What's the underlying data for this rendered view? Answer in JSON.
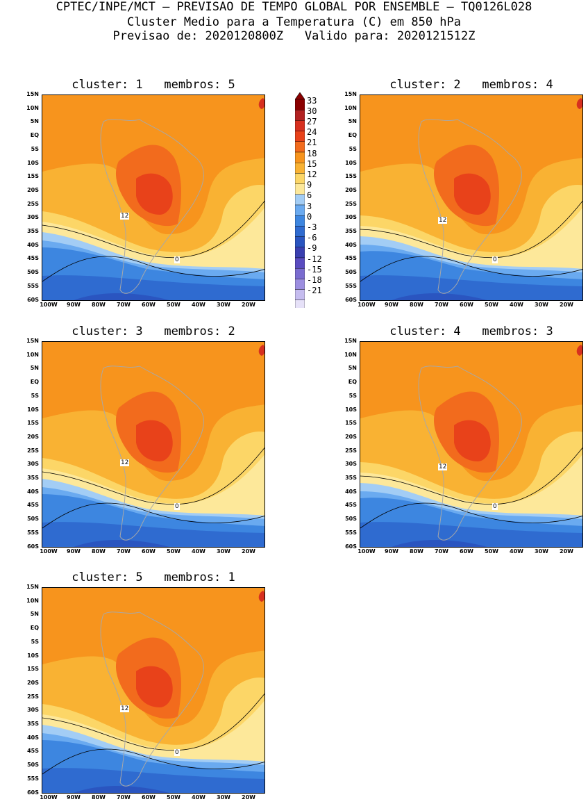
{
  "header": {
    "line1": "CPTEC/INPE/MCT – PREVISAO DE TEMPO GLOBAL POR ENSEMBLE – TQ0126L028",
    "line2": "Cluster Medio para a Temperatura (C) em 850 hPa",
    "line3": "Previsao de: 2020120800Z   Valido para: 2020121512Z"
  },
  "axes": {
    "lat_labels": [
      "15N",
      "10N",
      "5N",
      "EQ",
      "5S",
      "10S",
      "15S",
      "20S",
      "25S",
      "30S",
      "35S",
      "40S",
      "45S",
      "50S",
      "55S",
      "60S"
    ],
    "lon_labels": [
      "100W",
      "90W",
      "80W",
      "70W",
      "60W",
      "50W",
      "40W",
      "30W",
      "20W"
    ]
  },
  "colorbar": {
    "levels": [
      "33",
      "30",
      "27",
      "24",
      "21",
      "18",
      "15",
      "12",
      "9",
      "6",
      "3",
      "0",
      "-3",
      "-6",
      "-9",
      "-12",
      "-15",
      "-18",
      "-21"
    ],
    "colors": [
      "#8b0000",
      "#b22222",
      "#d7301f",
      "#e8421a",
      "#f26b1d",
      "#f7941d",
      "#f9b233",
      "#fcd667",
      "#fde89a",
      "#a3cdf5",
      "#6aaaf0",
      "#3d86e0",
      "#2f6bd0",
      "#2a55c0",
      "#3a3fb0",
      "#5a4cc0",
      "#7a6cd0",
      "#9c8ee0",
      "#c5bcef",
      "#e6e1f8"
    ]
  },
  "panels": [
    {
      "title": "cluster: 1   membros: 5",
      "label_12": "12",
      "label_0": "0"
    },
    {
      "title": "cluster: 2   membros: 4",
      "label_12": "12",
      "label_0": "0"
    },
    {
      "title": "cluster: 3   membros: 2",
      "label_12": "12",
      "label_0": "0"
    },
    {
      "title": "cluster: 4   membros: 3",
      "label_12": "12",
      "label_0": "0"
    },
    {
      "title": "cluster: 5   membros: 1",
      "label_12": "12",
      "label_0": "0"
    }
  ]
}
